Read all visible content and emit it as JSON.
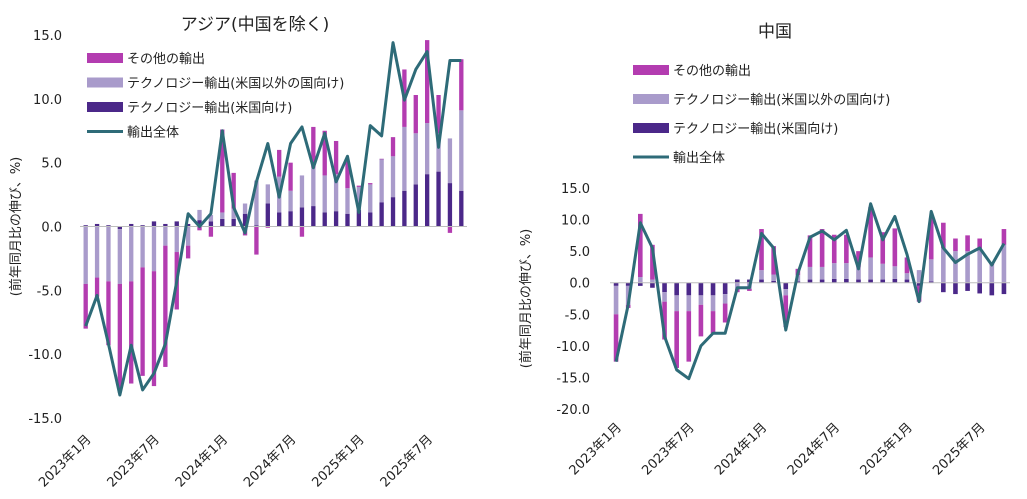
{
  "chart_data": [
    {
      "type": "bar",
      "title": "アジア(中国を除く)",
      "ylabel": "(前年同月比の伸び、%)",
      "xlabel": "",
      "ylim": [
        -15,
        15
      ],
      "yticks": [
        -15,
        -10,
        -5,
        0,
        5,
        10,
        15
      ],
      "ytick_labels": [
        "-15.0",
        "-10.0",
        "-5.0",
        "0.0",
        "5.0",
        "10.0",
        "15.0"
      ],
      "grid": false,
      "legend_position": "top-left",
      "x_tick_labels": [
        {
          "index": 0,
          "label": "2023年1月"
        },
        {
          "index": 6,
          "label": "2023年7月"
        },
        {
          "index": 12,
          "label": "2024年1月"
        },
        {
          "index": 18,
          "label": "2024年7月"
        },
        {
          "index": 24,
          "label": "2025年1月"
        },
        {
          "index": 30,
          "label": "2025年7月"
        }
      ],
      "series": [
        {
          "name": "その他の輸出",
          "kind": "bar",
          "color": "#b33cb0",
          "values": [
            -3.5,
            -1.5,
            -5.0,
            -8.5,
            -8.0,
            -8.5,
            -9.0,
            -9.5,
            -4.5,
            -1.0,
            -0.3,
            -0.8,
            6.5,
            2.8,
            -0.7,
            -2.2,
            -0.1,
            2.1,
            2.2,
            -0.8,
            3.2,
            3.5,
            2.6,
            2.1,
            0.1,
            0.1,
            0.0,
            1.5,
            4.5,
            3.0,
            6.5,
            3.0,
            -0.5,
            4.0
          ]
        },
        {
          "name": "テクノロジー輸出(米国以外の国向け)",
          "kind": "bar",
          "color": "#a99bcb",
          "values": [
            -4.5,
            -4.0,
            -4.3,
            -4.3,
            -4.3,
            -3.2,
            -3.5,
            -1.5,
            -2.0,
            -1.5,
            0.8,
            0.5,
            0.5,
            0.8,
            0.8,
            3.5,
            1.5,
            2.8,
            1.6,
            2.5,
            3.0,
            2.9,
            2.9,
            2.0,
            1.8,
            2.2,
            3.4,
            3.2,
            5.0,
            4.0,
            4.0,
            3.0,
            3.5,
            6.3
          ]
        },
        {
          "name": "テクノロジー輸出(米国向け)",
          "kind": "bar",
          "color": "#4b2889",
          "values": [
            0.1,
            0.2,
            0.1,
            -0.2,
            0.2,
            0.1,
            0.4,
            0.2,
            0.4,
            0.2,
            0.5,
            0.4,
            0.6,
            0.6,
            1.0,
            0.1,
            1.8,
            1.1,
            1.2,
            1.5,
            1.6,
            1.1,
            1.2,
            1.0,
            1.3,
            1.1,
            1.9,
            2.3,
            2.8,
            3.3,
            4.1,
            4.3,
            3.4,
            2.8
          ]
        },
        {
          "name": "輸出全体",
          "kind": "line",
          "color": "#2e6b78",
          "values": [
            -7.8,
            -5.4,
            -9.2,
            -13.2,
            -9.3,
            -12.8,
            -11.5,
            -9.2,
            -4.3,
            1.0,
            0.0,
            1.0,
            7.5,
            1.5,
            -0.5,
            3.5,
            6.5,
            2.3,
            6.5,
            7.8,
            4.6,
            7.3,
            3.5,
            5.5,
            1.1,
            7.9,
            7.1,
            14.4,
            9.9,
            12.3,
            13.7,
            6.2,
            13.0,
            13.0
          ]
        }
      ]
    },
    {
      "type": "bar",
      "title": "中国",
      "ylabel": "(前年同月比の伸び、%)",
      "xlabel": "",
      "ylim": [
        -20,
        15
      ],
      "yticks": [
        -20,
        -15,
        -10,
        -5,
        0,
        5,
        10,
        15
      ],
      "ytick_labels": [
        "-20.0",
        "-15.0",
        "-10.0",
        "-5.0",
        "0.0",
        "5.0",
        "10.0",
        "15.0"
      ],
      "grid": false,
      "legend_position": "top-left",
      "x_tick_labels": [
        {
          "index": 0,
          "label": "2023年1月"
        },
        {
          "index": 6,
          "label": "2023年7月"
        },
        {
          "index": 12,
          "label": "2024年1月"
        },
        {
          "index": 18,
          "label": "2024年7月"
        },
        {
          "index": 24,
          "label": "2025年1月"
        },
        {
          "index": 30,
          "label": "2025年7月"
        }
      ],
      "series": [
        {
          "name": "その他の輸出",
          "kind": "bar",
          "color": "#b33cb0",
          "values": [
            -7.5,
            -0.5,
            10.0,
            5.5,
            -6.0,
            -9.0,
            -8.0,
            -5.0,
            -3.5,
            -3.0,
            -0.5,
            -0.3,
            6.5,
            4.5,
            -5.0,
            1.0,
            5.0,
            6.0,
            4.5,
            4.5,
            2.5,
            8.0,
            5.0,
            6.0,
            2.5,
            -2.5,
            6.5,
            4.0,
            2.0,
            2.5,
            1.5,
            0.2,
            2.5
          ]
        },
        {
          "name": "テクノロジー輸出(米国以外の国向け)",
          "kind": "bar",
          "color": "#a99bcb",
          "values": [
            -4.5,
            -3.0,
            0.9,
            0.5,
            -1.5,
            -2.5,
            -2.5,
            -1.5,
            -2.5,
            -1.5,
            -1.0,
            -1.0,
            1.5,
            1.0,
            -1.0,
            1.0,
            2.0,
            2.0,
            2.5,
            2.5,
            2.0,
            3.5,
            2.5,
            2.0,
            1.0,
            2.0,
            3.5,
            5.5,
            5.0,
            5.0,
            5.5,
            2.8,
            6.0
          ]
        },
        {
          "name": "テクノロジー輸出(米国向け)",
          "kind": "bar",
          "color": "#4b2889",
          "values": [
            -0.5,
            -0.5,
            -0.5,
            -0.8,
            -1.5,
            -2.0,
            -2.0,
            -2.0,
            -2.0,
            -1.8,
            0.5,
            0.5,
            0.5,
            0.3,
            -1.0,
            0.2,
            0.5,
            0.5,
            0.6,
            0.6,
            0.5,
            0.5,
            0.5,
            0.6,
            0.5,
            -0.5,
            0.2,
            -1.5,
            -1.8,
            -1.3,
            -1.7,
            -2.0,
            -1.8
          ]
        },
        {
          "name": "輸出全体",
          "kind": "line",
          "color": "#2e6b78",
          "values": [
            -12.5,
            -3.5,
            9.5,
            5.5,
            -8.5,
            -13.8,
            -15.2,
            -10.0,
            -8.0,
            -8.0,
            -0.8,
            -0.8,
            7.8,
            5.5,
            -7.5,
            1.5,
            7.2,
            8.2,
            6.8,
            8.3,
            2.2,
            12.5,
            6.8,
            10.5,
            4.5,
            -3.0,
            11.3,
            5.5,
            3.2,
            4.5,
            5.5,
            2.8,
            6.2
          ]
        }
      ]
    }
  ]
}
